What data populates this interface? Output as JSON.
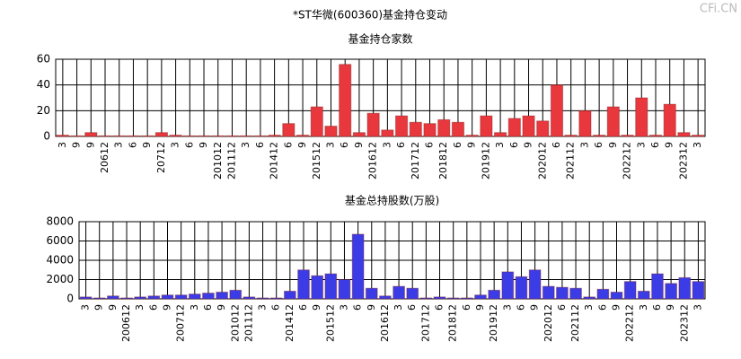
{
  "title": "*ST华微(600360)基金持仓变动",
  "watermark": "CFi.CN",
  "chart_data": [
    {
      "type": "bar",
      "title": "基金持仓家数",
      "color": "#e8383d",
      "grid": true,
      "categories": [
        "3",
        "9",
        "9",
        "20612",
        "3",
        "6",
        "9",
        "20712",
        "3",
        "6",
        "9",
        "201012",
        "201112",
        "3",
        "6",
        "201412",
        "6",
        "9",
        "201512",
        "3",
        "6",
        "9",
        "201612",
        "3",
        "6",
        "201712",
        "6",
        "201812",
        "6",
        "9",
        "201912",
        "3",
        "6",
        "9",
        "202012",
        "6",
        "202112",
        "3",
        "6",
        "9",
        "202212",
        "3",
        "6",
        "9",
        "202312",
        "3"
      ],
      "values": [
        1,
        0.5,
        3,
        0.5,
        0.5,
        0.5,
        0.5,
        3,
        1,
        0.5,
        0.5,
        0.5,
        0.5,
        0.5,
        0.5,
        1,
        10,
        1,
        23,
        8,
        56,
        3,
        18,
        5,
        16,
        11,
        10,
        13,
        11,
        1,
        16,
        3,
        14,
        16,
        12,
        40,
        1,
        20,
        1,
        23,
        1,
        30,
        1,
        25,
        3,
        1
      ],
      "ylim": [
        0,
        60
      ],
      "yticks": [
        0,
        20,
        40,
        60
      ]
    },
    {
      "type": "bar",
      "title": "基金总持股数(万股)",
      "color": "#3c3ce6",
      "grid": true,
      "categories": [
        "3",
        "9",
        "9",
        "200612",
        "3",
        "6",
        "9",
        "200712",
        "3",
        "6",
        "9",
        "201012",
        "201112",
        "3",
        "6",
        "201412",
        "6",
        "9",
        "201512",
        "3",
        "6",
        "9",
        "201612",
        "3",
        "6",
        "201712",
        "6",
        "201812",
        "6",
        "9",
        "201912",
        "3",
        "6",
        "9",
        "202012",
        "6",
        "202112",
        "3",
        "6",
        "9",
        "202212",
        "3",
        "6",
        "9",
        "202312",
        "3"
      ],
      "values": [
        200,
        100,
        300,
        100,
        200,
        300,
        400,
        400,
        500,
        600,
        700,
        900,
        200,
        100,
        100,
        800,
        3000,
        2400,
        2600,
        2000,
        6700,
        1100,
        300,
        1300,
        1100,
        100,
        200,
        100,
        100,
        400,
        900,
        2800,
        2300,
        3000,
        1300,
        1200,
        1100,
        200,
        1000,
        700,
        1800,
        800,
        2600,
        1600,
        2200,
        1800
      ],
      "ylim": [
        0,
        8000
      ],
      "yticks": [
        0,
        2000,
        4000,
        6000,
        8000
      ]
    }
  ]
}
